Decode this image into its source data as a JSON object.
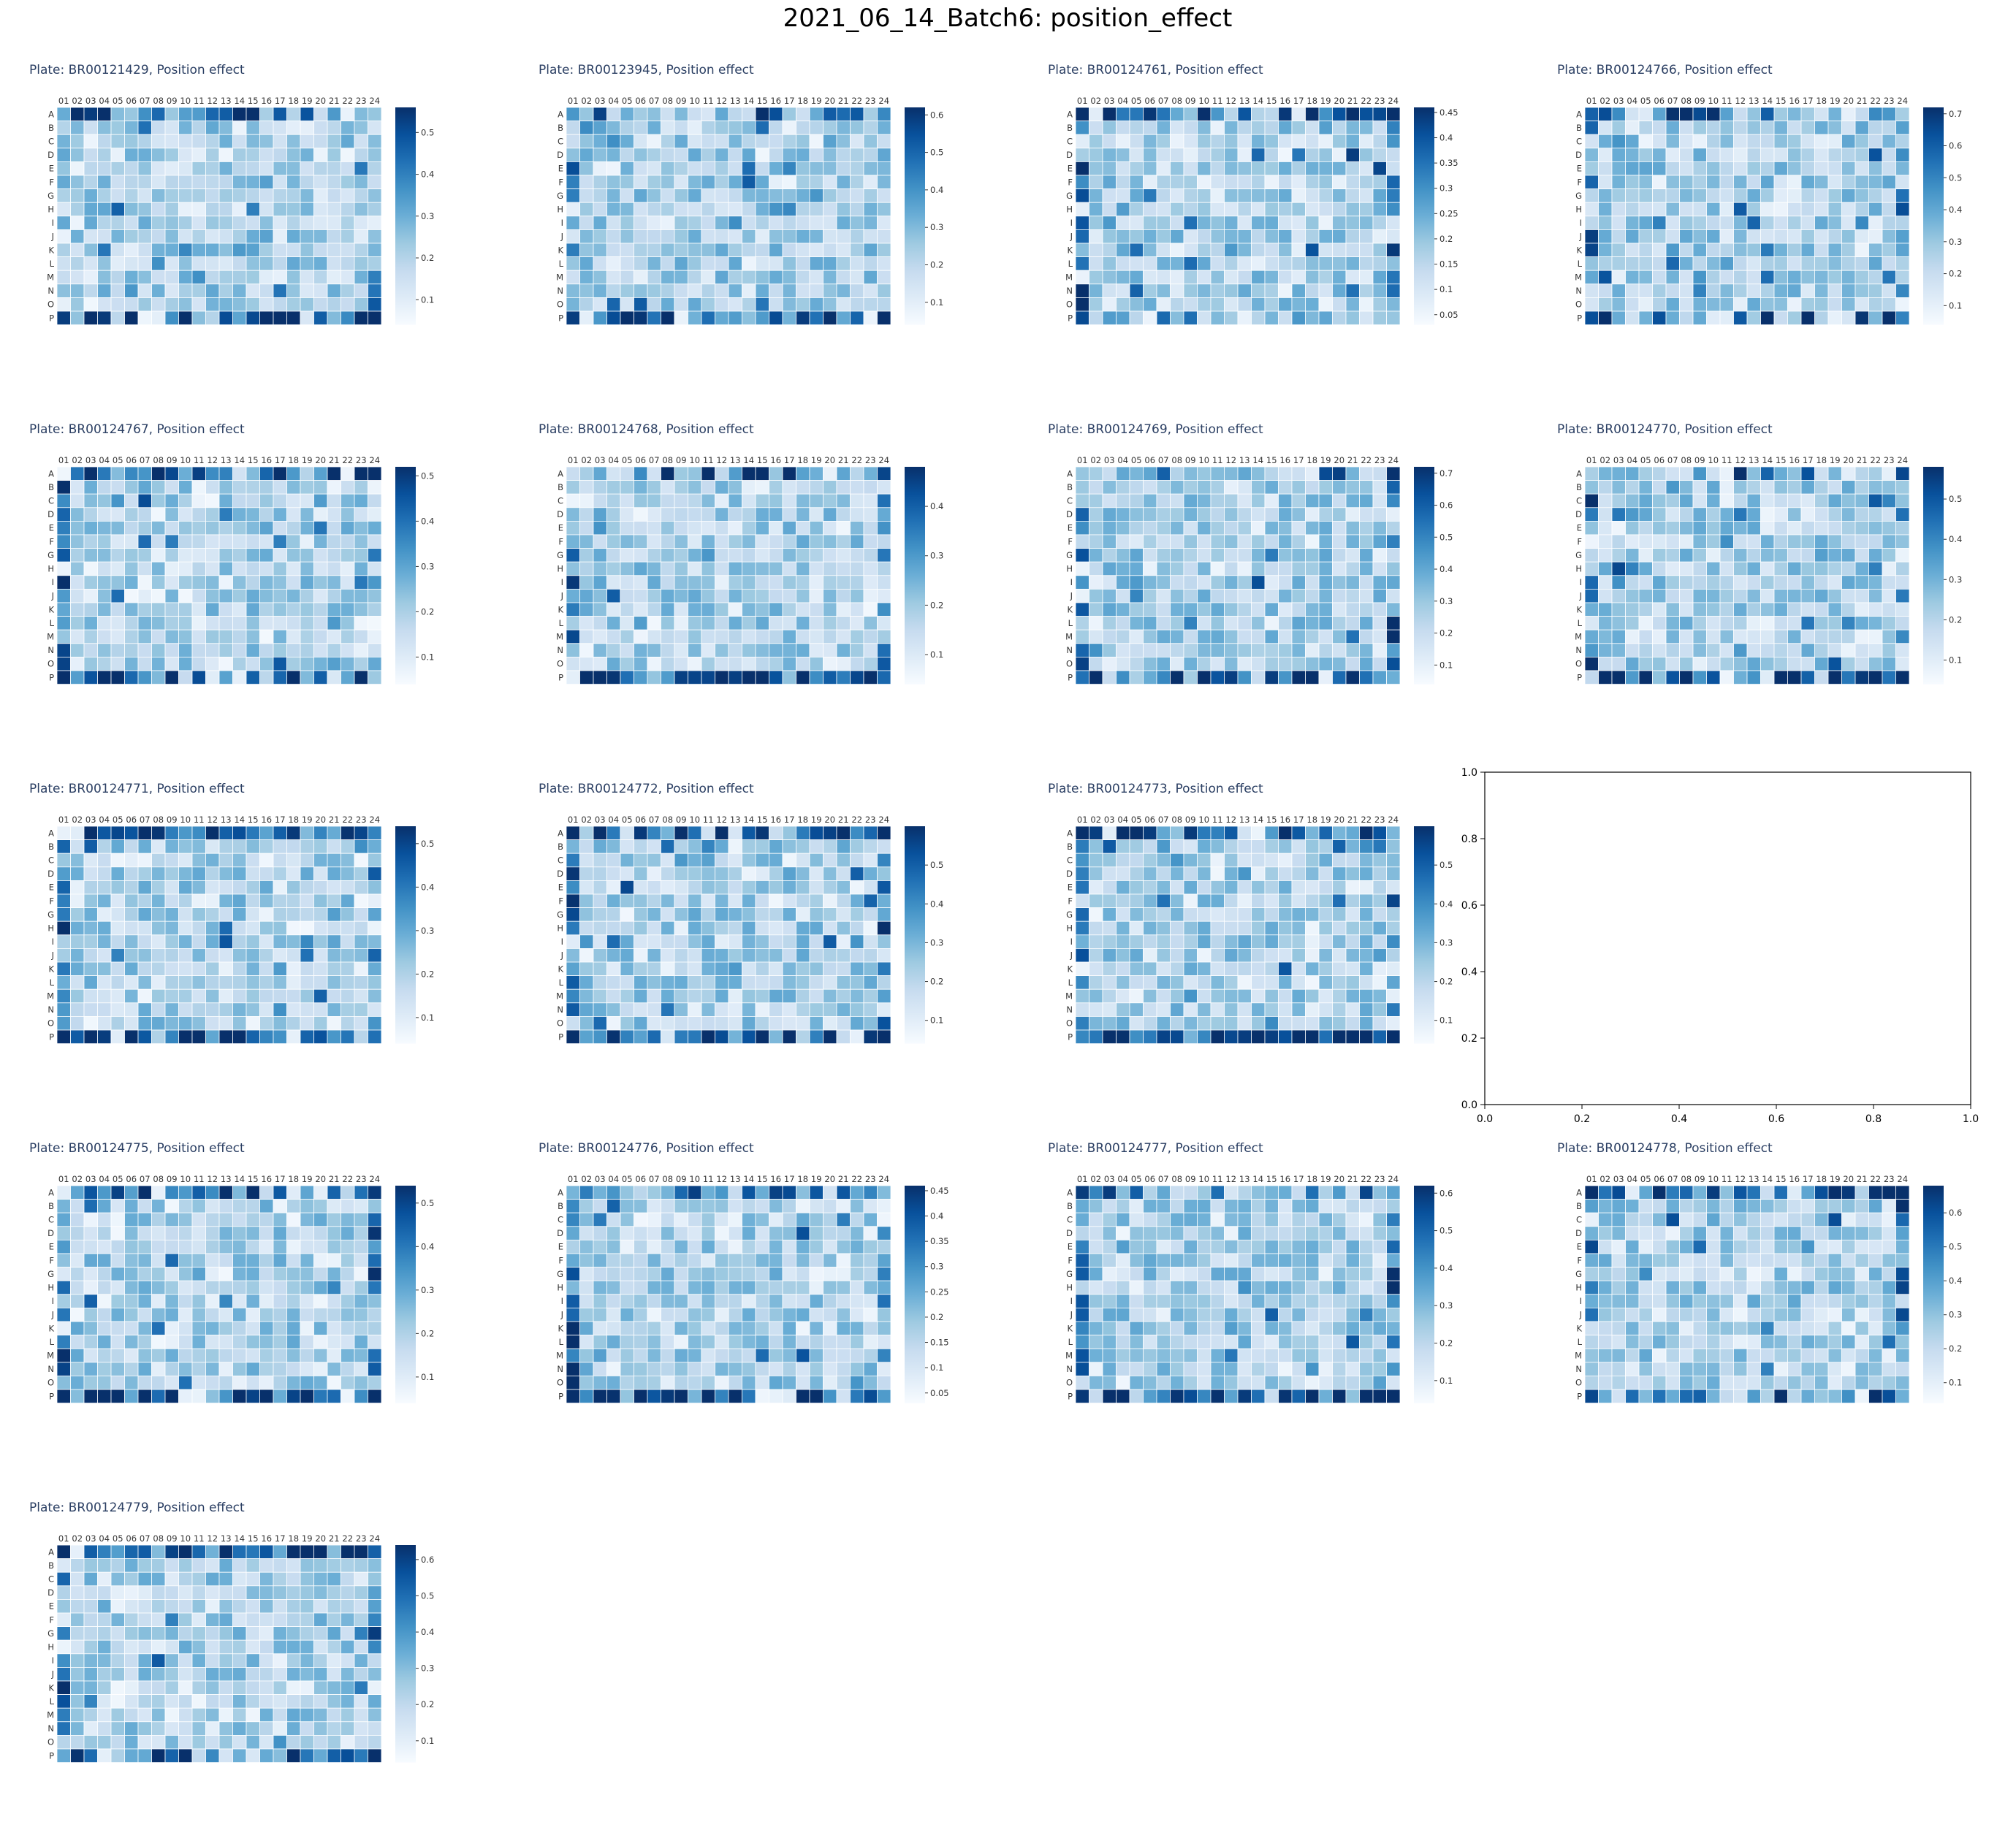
{
  "suptitle": "2021_06_14_Batch6: position_effect",
  "colormap": "Blues",
  "cmap_stops": [
    "#f7fbff",
    "#deebf7",
    "#c6dbef",
    "#9ecae1",
    "#6baed6",
    "#4292c6",
    "#2171b5",
    "#08519c",
    "#08306b"
  ],
  "chart_data": [
    {
      "type": "heatmap",
      "title": "Plate: BR00121429, Position effect",
      "rows": [
        "A",
        "B",
        "C",
        "D",
        "E",
        "F",
        "G",
        "H",
        "I",
        "J",
        "K",
        "L",
        "M",
        "N",
        "O",
        "P"
      ],
      "columns": [
        "01",
        "02",
        "03",
        "04",
        "05",
        "06",
        "07",
        "08",
        "09",
        "10",
        "11",
        "12",
        "13",
        "14",
        "15",
        "16",
        "17",
        "18",
        "19",
        "20",
        "21",
        "22",
        "23",
        "24"
      ],
      "colorbar_ticks": [
        0.1,
        0.2,
        0.3,
        0.4,
        0.5
      ],
      "colorbar_range": [
        0.04,
        0.56
      ],
      "seed": 11,
      "edge_strength": [
        0.7,
        0.0,
        0.3,
        0.8
      ],
      "max_value": 0.56
    },
    {
      "type": "heatmap",
      "title": "Plate: BR00123945, Position effect",
      "rows": [
        "A",
        "B",
        "C",
        "D",
        "E",
        "F",
        "G",
        "H",
        "I",
        "J",
        "K",
        "L",
        "M",
        "N",
        "O",
        "P"
      ],
      "columns": [
        "01",
        "02",
        "03",
        "04",
        "05",
        "06",
        "07",
        "08",
        "09",
        "10",
        "11",
        "12",
        "13",
        "14",
        "15",
        "16",
        "17",
        "18",
        "19",
        "20",
        "21",
        "22",
        "23",
        "24"
      ],
      "colorbar_ticks": [
        0.1,
        0.2,
        0.3,
        0.4,
        0.5,
        0.6
      ],
      "colorbar_range": [
        0.04,
        0.62
      ],
      "seed": 23,
      "edge_strength": [
        0.3,
        0.3,
        0.2,
        1.0
      ],
      "max_value": 0.62
    },
    {
      "type": "heatmap",
      "title": "Plate: BR00124761, Position effect",
      "rows": [
        "A",
        "B",
        "C",
        "D",
        "E",
        "F",
        "G",
        "H",
        "I",
        "J",
        "K",
        "L",
        "M",
        "N",
        "O",
        "P"
      ],
      "columns": [
        "01",
        "02",
        "03",
        "04",
        "05",
        "06",
        "07",
        "08",
        "09",
        "10",
        "11",
        "12",
        "13",
        "14",
        "15",
        "16",
        "17",
        "18",
        "19",
        "20",
        "21",
        "22",
        "23",
        "24"
      ],
      "colorbar_ticks": [
        0.05,
        0.1,
        0.15,
        0.2,
        0.25,
        0.3,
        0.35,
        0.4,
        0.45
      ],
      "colorbar_range": [
        0.03,
        0.46
      ],
      "seed": 37,
      "edge_strength": [
        0.8,
        0.7,
        0.3,
        0.3
      ],
      "max_value": 0.46
    },
    {
      "type": "heatmap",
      "title": "Plate: BR00124766, Position effect",
      "rows": [
        "A",
        "B",
        "C",
        "D",
        "E",
        "F",
        "G",
        "H",
        "I",
        "J",
        "K",
        "L",
        "M",
        "N",
        "O",
        "P"
      ],
      "columns": [
        "01",
        "02",
        "03",
        "04",
        "05",
        "06",
        "07",
        "08",
        "09",
        "10",
        "11",
        "12",
        "13",
        "14",
        "15",
        "16",
        "17",
        "18",
        "19",
        "20",
        "21",
        "22",
        "23",
        "24"
      ],
      "colorbar_ticks": [
        0.1,
        0.2,
        0.3,
        0.4,
        0.5,
        0.6,
        0.7
      ],
      "colorbar_range": [
        0.04,
        0.72
      ],
      "seed": 41,
      "edge_strength": [
        0.5,
        0.3,
        0.5,
        0.3
      ],
      "max_value": 0.72
    },
    {
      "type": "heatmap",
      "title": "Plate: BR00124767, Position effect",
      "rows": [
        "A",
        "B",
        "C",
        "D",
        "E",
        "F",
        "G",
        "H",
        "I",
        "J",
        "K",
        "L",
        "M",
        "N",
        "O",
        "P"
      ],
      "columns": [
        "01",
        "02",
        "03",
        "04",
        "05",
        "06",
        "07",
        "08",
        "09",
        "10",
        "11",
        "12",
        "13",
        "14",
        "15",
        "16",
        "17",
        "18",
        "19",
        "20",
        "21",
        "22",
        "23",
        "24"
      ],
      "colorbar_ticks": [
        0.1,
        0.2,
        0.3,
        0.4,
        0.5
      ],
      "colorbar_range": [
        0.04,
        0.52
      ],
      "seed": 53,
      "edge_strength": [
        0.8,
        0.8,
        0.5,
        0.8
      ],
      "max_value": 0.52
    },
    {
      "type": "heatmap",
      "title": "Plate: BR00124768, Position effect",
      "rows": [
        "A",
        "B",
        "C",
        "D",
        "E",
        "F",
        "G",
        "H",
        "I",
        "J",
        "K",
        "L",
        "M",
        "N",
        "O",
        "P"
      ],
      "columns": [
        "01",
        "02",
        "03",
        "04",
        "05",
        "06",
        "07",
        "08",
        "09",
        "10",
        "11",
        "12",
        "13",
        "14",
        "15",
        "16",
        "17",
        "18",
        "19",
        "20",
        "21",
        "22",
        "23",
        "24"
      ],
      "colorbar_ticks": [
        0.1,
        0.2,
        0.3,
        0.4
      ],
      "colorbar_range": [
        0.04,
        0.48
      ],
      "seed": 67,
      "edge_strength": [
        0.4,
        0.5,
        0.4,
        0.8
      ],
      "max_value": 0.48
    },
    {
      "type": "heatmap",
      "title": "Plate: BR00124769, Position effect",
      "rows": [
        "A",
        "B",
        "C",
        "D",
        "E",
        "F",
        "G",
        "H",
        "I",
        "J",
        "K",
        "L",
        "M",
        "N",
        "O",
        "P"
      ],
      "columns": [
        "01",
        "02",
        "03",
        "04",
        "05",
        "06",
        "07",
        "08",
        "09",
        "10",
        "11",
        "12",
        "13",
        "14",
        "15",
        "16",
        "17",
        "18",
        "19",
        "20",
        "21",
        "22",
        "23",
        "24"
      ],
      "colorbar_ticks": [
        0.1,
        0.2,
        0.3,
        0.4,
        0.5,
        0.6,
        0.7
      ],
      "colorbar_range": [
        0.04,
        0.72
      ],
      "seed": 71,
      "edge_strength": [
        0.3,
        0.6,
        0.6,
        0.6
      ],
      "max_value": 0.72
    },
    {
      "type": "heatmap",
      "title": "Plate: BR00124770, Position effect",
      "rows": [
        "A",
        "B",
        "C",
        "D",
        "E",
        "F",
        "G",
        "H",
        "I",
        "J",
        "K",
        "L",
        "M",
        "N",
        "O",
        "P"
      ],
      "columns": [
        "01",
        "02",
        "03",
        "04",
        "05",
        "06",
        "07",
        "08",
        "09",
        "10",
        "11",
        "12",
        "13",
        "14",
        "15",
        "16",
        "17",
        "18",
        "19",
        "20",
        "21",
        "22",
        "23",
        "24"
      ],
      "colorbar_ticks": [
        0.1,
        0.2,
        0.3,
        0.4,
        0.5
      ],
      "colorbar_range": [
        0.04,
        0.58
      ],
      "seed": 83,
      "edge_strength": [
        0.5,
        0.5,
        0.4,
        0.6
      ],
      "max_value": 0.58
    },
    {
      "type": "heatmap",
      "title": "Plate: BR00124771, Position effect",
      "rows": [
        "A",
        "B",
        "C",
        "D",
        "E",
        "F",
        "G",
        "H",
        "I",
        "J",
        "K",
        "L",
        "M",
        "N",
        "O",
        "P"
      ],
      "columns": [
        "01",
        "02",
        "03",
        "04",
        "05",
        "06",
        "07",
        "08",
        "09",
        "10",
        "11",
        "12",
        "13",
        "14",
        "15",
        "16",
        "17",
        "18",
        "19",
        "20",
        "21",
        "22",
        "23",
        "24"
      ],
      "colorbar_ticks": [
        0.1,
        0.2,
        0.3,
        0.4,
        0.5
      ],
      "colorbar_range": [
        0.04,
        0.54
      ],
      "seed": 97,
      "edge_strength": [
        0.8,
        0.8,
        0.6,
        0.8
      ],
      "max_value": 0.54
    },
    {
      "type": "heatmap",
      "title": "Plate: BR00124772, Position effect",
      "rows": [
        "A",
        "B",
        "C",
        "D",
        "E",
        "F",
        "G",
        "H",
        "I",
        "J",
        "K",
        "L",
        "M",
        "N",
        "O",
        "P"
      ],
      "columns": [
        "01",
        "02",
        "03",
        "04",
        "05",
        "06",
        "07",
        "08",
        "09",
        "10",
        "11",
        "12",
        "13",
        "14",
        "15",
        "16",
        "17",
        "18",
        "19",
        "20",
        "21",
        "22",
        "23",
        "24"
      ],
      "colorbar_ticks": [
        0.1,
        0.2,
        0.3,
        0.4,
        0.5
      ],
      "colorbar_range": [
        0.04,
        0.6
      ],
      "seed": 101,
      "edge_strength": [
        0.8,
        0.9,
        0.5,
        0.9
      ],
      "max_value": 0.6
    },
    {
      "type": "heatmap",
      "title": "Plate: BR00124773, Position effect",
      "rows": [
        "A",
        "B",
        "C",
        "D",
        "E",
        "F",
        "G",
        "H",
        "I",
        "J",
        "K",
        "L",
        "M",
        "N",
        "O",
        "P"
      ],
      "columns": [
        "01",
        "02",
        "03",
        "04",
        "05",
        "06",
        "07",
        "08",
        "09",
        "10",
        "11",
        "12",
        "13",
        "14",
        "15",
        "16",
        "17",
        "18",
        "19",
        "20",
        "21",
        "22",
        "23",
        "24"
      ],
      "colorbar_ticks": [
        0.1,
        0.2,
        0.3,
        0.4,
        0.5
      ],
      "colorbar_range": [
        0.04,
        0.6
      ],
      "seed": 113,
      "edge_strength": [
        0.8,
        0.6,
        0.7,
        1.0
      ],
      "max_value": 0.6
    },
    {
      "type": "empty_axes",
      "xlim": [
        0.0,
        1.0
      ],
      "ylim": [
        0.0,
        1.0
      ],
      "ticks": [
        0.0,
        0.2,
        0.4,
        0.6,
        0.8,
        1.0
      ],
      "tick_labels": [
        "0.0",
        "0.2",
        "0.4",
        "0.6",
        "0.8",
        "1.0"
      ]
    },
    {
      "type": "heatmap",
      "title": "Plate: BR00124775, Position effect",
      "rows": [
        "A",
        "B",
        "C",
        "D",
        "E",
        "F",
        "G",
        "H",
        "I",
        "J",
        "K",
        "L",
        "M",
        "N",
        "O",
        "P"
      ],
      "columns": [
        "01",
        "02",
        "03",
        "04",
        "05",
        "06",
        "07",
        "08",
        "09",
        "10",
        "11",
        "12",
        "13",
        "14",
        "15",
        "16",
        "17",
        "18",
        "19",
        "20",
        "21",
        "22",
        "23",
        "24"
      ],
      "colorbar_ticks": [
        0.1,
        0.2,
        0.3,
        0.4,
        0.5
      ],
      "colorbar_range": [
        0.04,
        0.54
      ],
      "seed": 127,
      "edge_strength": [
        0.9,
        0.7,
        0.5,
        0.9
      ],
      "max_value": 0.54
    },
    {
      "type": "heatmap",
      "title": "Plate: BR00124776, Position effect",
      "rows": [
        "A",
        "B",
        "C",
        "D",
        "E",
        "F",
        "G",
        "H",
        "I",
        "J",
        "K",
        "L",
        "M",
        "N",
        "O",
        "P"
      ],
      "columns": [
        "01",
        "02",
        "03",
        "04",
        "05",
        "06",
        "07",
        "08",
        "09",
        "10",
        "11",
        "12",
        "13",
        "14",
        "15",
        "16",
        "17",
        "18",
        "19",
        "20",
        "21",
        "22",
        "23",
        "24"
      ],
      "colorbar_ticks": [
        0.05,
        0.1,
        0.15,
        0.2,
        0.25,
        0.3,
        0.35,
        0.4,
        0.45
      ],
      "colorbar_range": [
        0.03,
        0.46
      ],
      "seed": 131,
      "edge_strength": [
        0.6,
        0.7,
        0.5,
        0.9
      ],
      "max_value": 0.46
    },
    {
      "type": "heatmap",
      "title": "Plate: BR00124777, Position effect",
      "rows": [
        "A",
        "B",
        "C",
        "D",
        "E",
        "F",
        "G",
        "H",
        "I",
        "J",
        "K",
        "L",
        "M",
        "N",
        "O",
        "P"
      ],
      "columns": [
        "01",
        "02",
        "03",
        "04",
        "05",
        "06",
        "07",
        "08",
        "09",
        "10",
        "11",
        "12",
        "13",
        "14",
        "15",
        "16",
        "17",
        "18",
        "19",
        "20",
        "21",
        "22",
        "23",
        "24"
      ],
      "colorbar_ticks": [
        0.1,
        0.2,
        0.3,
        0.4,
        0.5,
        0.6
      ],
      "colorbar_range": [
        0.04,
        0.62
      ],
      "seed": 139,
      "edge_strength": [
        0.4,
        0.6,
        0.4,
        0.8
      ],
      "max_value": 0.62
    },
    {
      "type": "heatmap",
      "title": "Plate: BR00124778, Position effect",
      "rows": [
        "A",
        "B",
        "C",
        "D",
        "E",
        "F",
        "G",
        "H",
        "I",
        "J",
        "K",
        "L",
        "M",
        "N",
        "O",
        "P"
      ],
      "columns": [
        "01",
        "02",
        "03",
        "04",
        "05",
        "06",
        "07",
        "08",
        "09",
        "10",
        "11",
        "12",
        "13",
        "14",
        "15",
        "16",
        "17",
        "18",
        "19",
        "20",
        "21",
        "22",
        "23",
        "24"
      ],
      "colorbar_ticks": [
        0.1,
        0.2,
        0.3,
        0.4,
        0.5,
        0.6
      ],
      "colorbar_range": [
        0.04,
        0.68
      ],
      "seed": 149,
      "edge_strength": [
        0.6,
        0.4,
        0.4,
        0.5
      ],
      "max_value": 0.68
    },
    {
      "type": "heatmap",
      "title": "Plate: BR00124779, Position effect",
      "rows": [
        "A",
        "B",
        "C",
        "D",
        "E",
        "F",
        "G",
        "H",
        "I",
        "J",
        "K",
        "L",
        "M",
        "N",
        "O",
        "P"
      ],
      "columns": [
        "01",
        "02",
        "03",
        "04",
        "05",
        "06",
        "07",
        "08",
        "09",
        "10",
        "11",
        "12",
        "13",
        "14",
        "15",
        "16",
        "17",
        "18",
        "19",
        "20",
        "21",
        "22",
        "23",
        "24"
      ],
      "colorbar_ticks": [
        0.1,
        0.2,
        0.3,
        0.4,
        0.5,
        0.6
      ],
      "colorbar_range": [
        0.04,
        0.64
      ],
      "seed": 151,
      "edge_strength": [
        0.9,
        0.7,
        0.5,
        0.5
      ],
      "max_value": 0.64
    }
  ]
}
